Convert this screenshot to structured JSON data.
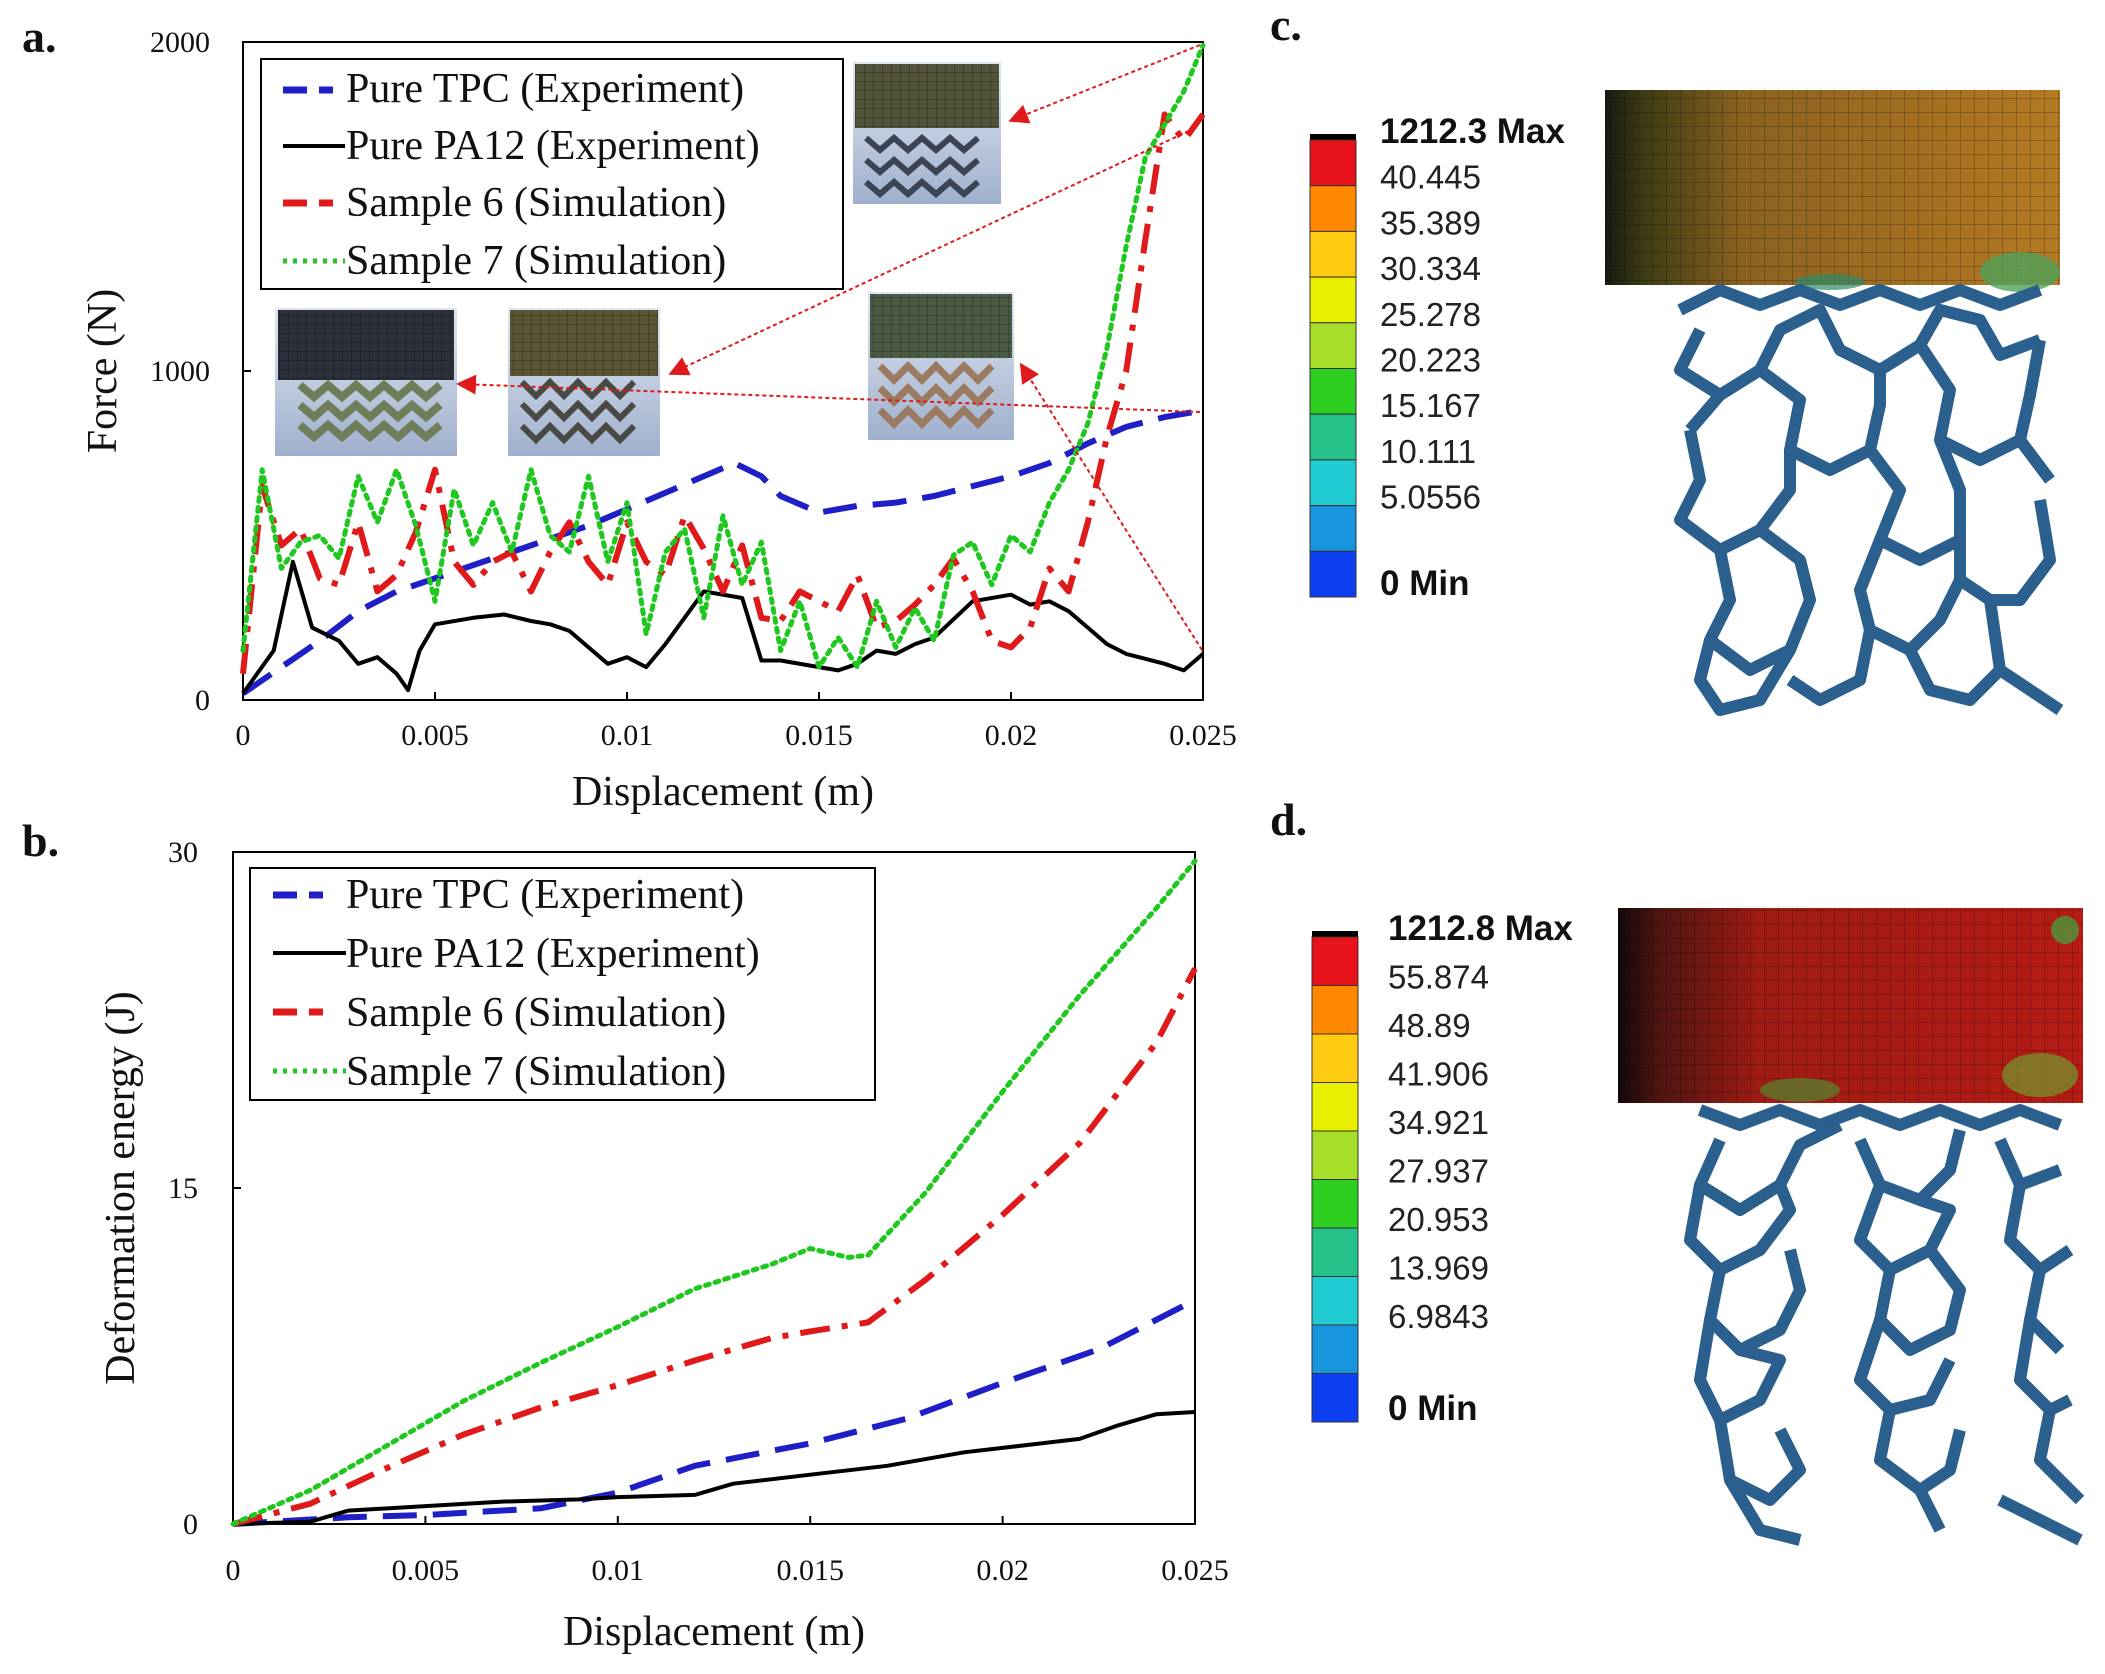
{
  "panels": {
    "a": "a.",
    "b": "b.",
    "c": "c.",
    "d": "d."
  },
  "chart_data": [
    {
      "panel": "a",
      "type": "line",
      "xlabel": "Displacement (m)",
      "ylabel": "Force (N)",
      "xlim": [
        0,
        0.025
      ],
      "ylim": [
        0,
        2000
      ],
      "xticks": [
        "0",
        "0.005",
        "0.01",
        "0.015",
        "0.02",
        "0.025"
      ],
      "yticks": [
        "0",
        "1000",
        "2000"
      ],
      "series": [
        {
          "name": "Pure TPC (Experiment)",
          "color": "#1f1fc8",
          "style": "dashed",
          "x": [
            0,
            0.001,
            0.002,
            0.003,
            0.004,
            0.005,
            0.006,
            0.007,
            0.008,
            0.009,
            0.01,
            0.011,
            0.012,
            0.0128,
            0.0135,
            0.014,
            0.015,
            0.016,
            0.017,
            0.018,
            0.019,
            0.02,
            0.021,
            0.022,
            0.023,
            0.024,
            0.025
          ],
          "y": [
            20,
            100,
            180,
            270,
            330,
            370,
            410,
            450,
            490,
            530,
            580,
            630,
            680,
            720,
            680,
            620,
            570,
            590,
            600,
            620,
            650,
            680,
            720,
            780,
            830,
            860,
            880
          ]
        },
        {
          "name": "Pure PA12 (Experiment)",
          "color": "#000000",
          "style": "solid",
          "x": [
            0,
            0.0008,
            0.0013,
            0.0018,
            0.0025,
            0.003,
            0.0035,
            0.004,
            0.0043,
            0.0046,
            0.005,
            0.006,
            0.0068,
            0.0075,
            0.008,
            0.0085,
            0.009,
            0.0095,
            0.01,
            0.0105,
            0.011,
            0.012,
            0.013,
            0.0135,
            0.014,
            0.015,
            0.0155,
            0.016,
            0.0165,
            0.017,
            0.0175,
            0.018,
            0.019,
            0.02,
            0.0205,
            0.021,
            0.0215,
            0.022,
            0.0225,
            0.023,
            0.024,
            0.0245,
            0.025
          ],
          "y": [
            20,
            150,
            420,
            220,
            180,
            110,
            130,
            80,
            30,
            150,
            230,
            250,
            260,
            240,
            230,
            210,
            160,
            110,
            130,
            100,
            170,
            330,
            310,
            120,
            120,
            100,
            90,
            110,
            150,
            140,
            170,
            190,
            300,
            320,
            290,
            300,
            270,
            220,
            170,
            140,
            110,
            90,
            140
          ]
        },
        {
          "name": "Sample 6 (Simulation)",
          "color": "#e01a1a",
          "style": "dashdot",
          "x": [
            0,
            0.0005,
            0.001,
            0.0015,
            0.002,
            0.0025,
            0.003,
            0.0035,
            0.004,
            0.0045,
            0.005,
            0.0055,
            0.006,
            0.0065,
            0.007,
            0.0075,
            0.008,
            0.0085,
            0.009,
            0.0095,
            0.01,
            0.0105,
            0.011,
            0.0115,
            0.012,
            0.0125,
            0.013,
            0.0135,
            0.014,
            0.0145,
            0.015,
            0.0155,
            0.016,
            0.0165,
            0.017,
            0.0175,
            0.018,
            0.0185,
            0.019,
            0.0195,
            0.02,
            0.0205,
            0.021,
            0.0215,
            0.022,
            0.0225,
            0.023,
            0.0235,
            0.024,
            0.0245,
            0.025
          ],
          "y": [
            80,
            650,
            470,
            520,
            370,
            350,
            540,
            330,
            380,
            510,
            700,
            420,
            350,
            420,
            450,
            330,
            450,
            540,
            420,
            350,
            540,
            420,
            380,
            560,
            460,
            330,
            470,
            250,
            240,
            330,
            300,
            270,
            380,
            220,
            240,
            290,
            350,
            430,
            330,
            180,
            160,
            220,
            400,
            330,
            540,
            800,
            1000,
            1400,
            1780,
            1700,
            1780
          ]
        },
        {
          "name": "Sample 7 (Simulation)",
          "color": "#1ec81e",
          "style": "dotted",
          "x": [
            0,
            0.0005,
            0.001,
            0.0015,
            0.002,
            0.0025,
            0.003,
            0.0035,
            0.004,
            0.0045,
            0.005,
            0.0055,
            0.006,
            0.0065,
            0.007,
            0.0075,
            0.008,
            0.0085,
            0.009,
            0.0095,
            0.01,
            0.0105,
            0.011,
            0.0115,
            0.012,
            0.0125,
            0.013,
            0.0135,
            0.014,
            0.0145,
            0.015,
            0.0155,
            0.016,
            0.0165,
            0.017,
            0.0175,
            0.018,
            0.0185,
            0.019,
            0.0195,
            0.02,
            0.0205,
            0.021,
            0.0215,
            0.022,
            0.0225,
            0.023,
            0.0235,
            0.024,
            0.0245,
            0.025
          ],
          "y": [
            150,
            700,
            400,
            480,
            500,
            430,
            680,
            540,
            700,
            530,
            300,
            640,
            470,
            600,
            450,
            700,
            500,
            450,
            680,
            420,
            600,
            200,
            450,
            520,
            250,
            560,
            350,
            480,
            150,
            300,
            100,
            190,
            100,
            300,
            160,
            280,
            180,
            440,
            480,
            350,
            500,
            450,
            600,
            700,
            840,
            1070,
            1380,
            1650,
            1750,
            1850,
            1990
          ]
        }
      ]
    },
    {
      "panel": "b",
      "type": "line",
      "xlabel": "Displacement (m)",
      "ylabel": "Deformation energy (J)",
      "xlim": [
        0,
        0.025
      ],
      "ylim": [
        0,
        30
      ],
      "xticks": [
        "0",
        "0.005",
        "0.01",
        "0.015",
        "0.02",
        "0.025"
      ],
      "yticks": [
        "0",
        "15",
        "30"
      ],
      "series": [
        {
          "name": "Pure TPC (Experiment)",
          "color": "#1f1fc8",
          "style": "dashed",
          "x": [
            0,
            0.003,
            0.005,
            0.008,
            0.01,
            0.012,
            0.015,
            0.0175,
            0.02,
            0.0225,
            0.025
          ],
          "y": [
            0,
            0.3,
            0.4,
            0.7,
            1.4,
            2.6,
            3.6,
            4.7,
            6.3,
            7.8,
            10.0
          ]
        },
        {
          "name": "Pure PA12 (Experiment)",
          "color": "#000000",
          "style": "solid",
          "x": [
            0,
            0.002,
            0.003,
            0.005,
            0.007,
            0.009,
            0.01,
            0.012,
            0.013,
            0.015,
            0.017,
            0.019,
            0.021,
            0.022,
            0.023,
            0.024,
            0.025
          ],
          "y": [
            0,
            0.1,
            0.6,
            0.8,
            1.0,
            1.1,
            1.2,
            1.3,
            1.8,
            2.2,
            2.6,
            3.2,
            3.6,
            3.8,
            4.4,
            4.9,
            5.0
          ]
        },
        {
          "name": "Sample 6 (Simulation)",
          "color": "#e01a1a",
          "style": "dashdot",
          "x": [
            0,
            0.002,
            0.004,
            0.006,
            0.008,
            0.01,
            0.012,
            0.014,
            0.015,
            0.0165,
            0.018,
            0.02,
            0.022,
            0.024,
            0.025
          ],
          "y": [
            0,
            0.9,
            2.5,
            4.0,
            5.2,
            6.2,
            7.3,
            8.3,
            8.6,
            9.0,
            10.9,
            13.8,
            17.0,
            21.5,
            24.8
          ]
        },
        {
          "name": "Sample 7 (Simulation)",
          "color": "#1ec81e",
          "style": "dotted",
          "x": [
            0,
            0.002,
            0.004,
            0.006,
            0.008,
            0.01,
            0.012,
            0.014,
            0.015,
            0.016,
            0.0165,
            0.018,
            0.02,
            0.022,
            0.024,
            0.025
          ],
          "y": [
            0,
            1.5,
            3.5,
            5.5,
            7.2,
            8.8,
            10.5,
            11.6,
            12.3,
            11.9,
            12.0,
            14.8,
            19.3,
            23.6,
            27.5,
            29.6
          ]
        }
      ]
    }
  ],
  "colorbars": {
    "c": {
      "labels": [
        "1212.3 Max",
        "40.445",
        "35.389",
        "30.334",
        "25.278",
        "20.223",
        "15.167",
        "10.111",
        "5.0556",
        "0 Min"
      ],
      "colors": [
        "#e8131a",
        "#ff8800",
        "#ffcc11",
        "#e8f000",
        "#a6de2a",
        "#2fcf22",
        "#24c289",
        "#21cbd2",
        "#1896dd",
        "#0c3ff2"
      ]
    },
    "d": {
      "labels": [
        "1212.8 Max",
        "55.874",
        "48.89",
        "41.906",
        "34.921",
        "27.937",
        "20.953",
        "13.969",
        "6.9843",
        "0 Min"
      ],
      "colors": [
        "#e8131a",
        "#ff8800",
        "#ffcc11",
        "#e8f000",
        "#a6de2a",
        "#2fcf22",
        "#24c289",
        "#21cbd2",
        "#1896dd",
        "#0c3ff2"
      ]
    }
  }
}
